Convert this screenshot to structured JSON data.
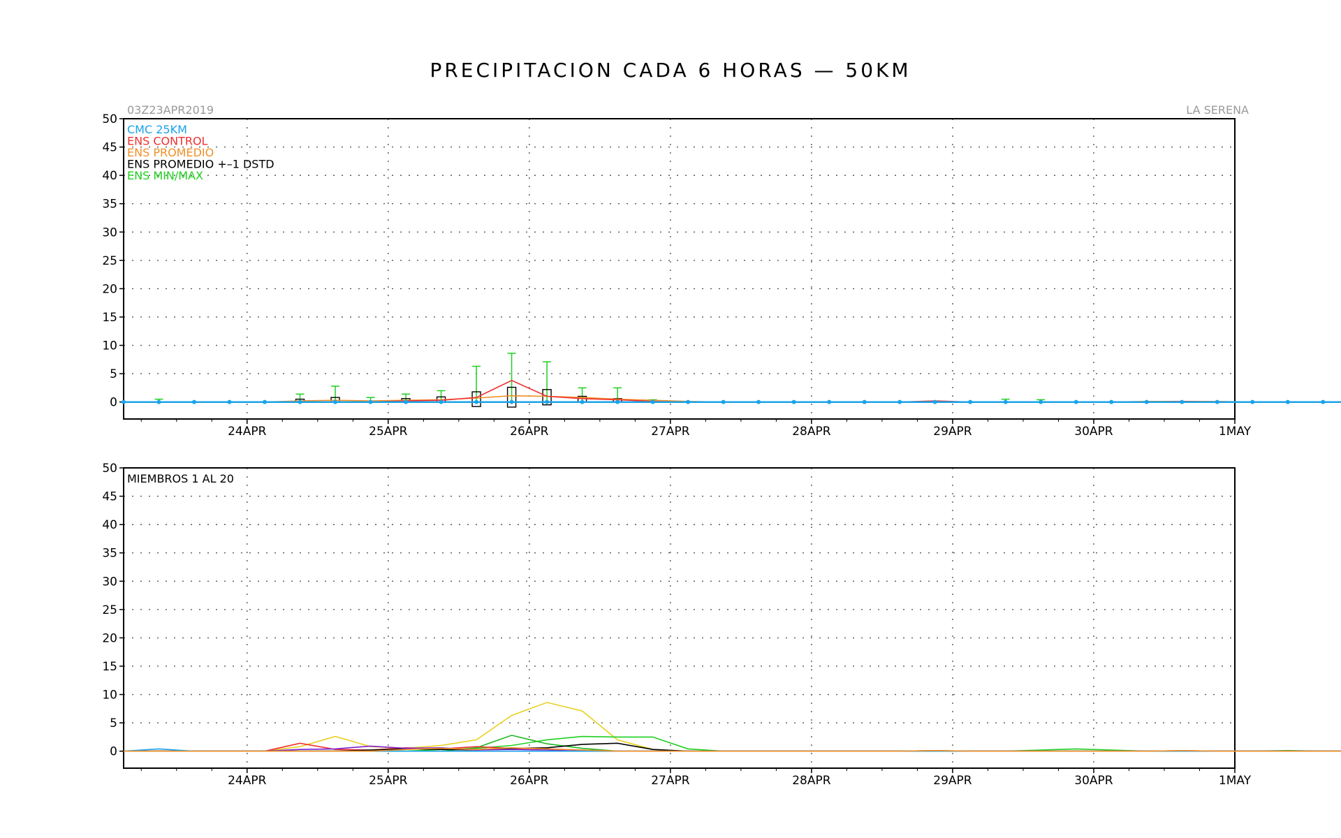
{
  "title": "PRECIPITACION CADA 6 HORAS — 50KM",
  "init_time": "03Z23APR2019",
  "location": "LA SERENA",
  "colors": {
    "cmc": "#1aa3e8",
    "control": "#f03030",
    "promedio": "#f09028",
    "dstd": "#000000",
    "minmax": "#1ed01e",
    "axis": "#000000"
  },
  "chart_data": [
    {
      "type": "line",
      "xlim": [
        "23APR 03Z",
        "1MAY 00Z"
      ],
      "ylim": [
        -3,
        50
      ],
      "yticks": [
        0,
        5,
        10,
        15,
        20,
        25,
        30,
        35,
        40,
        45,
        50
      ],
      "xtick_labels": [
        "24APR",
        "25APR",
        "26APR",
        "27APR",
        "28APR",
        "29APR",
        "30APR",
        "1MAY"
      ],
      "grid": true,
      "legend": [
        {
          "label": "CMC 25KM",
          "color_key": "cmc"
        },
        {
          "label": "ENS CONTROL",
          "color_key": "control"
        },
        {
          "label": "ENS PROMEDIO",
          "color_key": "promedio"
        },
        {
          "label": "ENS PROMEDIO +–1 DSTD",
          "color_key": "dstd"
        },
        {
          "label": "ENS MIN/MAX",
          "color_key": "minmax"
        }
      ],
      "legend_position": "top-left",
      "x_start_hour": 3,
      "step_hours": 6,
      "cmc": [
        0,
        0,
        0,
        0,
        0,
        0,
        0,
        0,
        0,
        0,
        0,
        0,
        0,
        0,
        0,
        0,
        0,
        0,
        0,
        0,
        0,
        0,
        0,
        0,
        0,
        0,
        0,
        0,
        0,
        0,
        0,
        0,
        0,
        0,
        0,
        0,
        0,
        0,
        0,
        0,
        0,
        0,
        0,
        0,
        0,
        0,
        0,
        0,
        0,
        0,
        0,
        0,
        0,
        0,
        0,
        0,
        0,
        0,
        0,
        0,
        0,
        0,
        0,
        0
      ],
      "control": [
        0,
        0,
        0,
        0,
        0,
        0,
        0,
        0,
        0.2,
        0.3,
        0.8,
        3.8,
        1.0,
        0.6,
        0.4,
        0.1,
        0,
        0,
        0,
        0,
        0,
        0,
        0,
        0.2,
        0,
        0,
        0,
        0,
        0,
        0,
        0.1,
        0,
        0,
        0,
        0,
        0,
        0,
        0,
        0,
        0,
        0,
        0,
        0,
        0,
        0,
        0,
        0,
        0,
        0,
        0,
        0,
        0,
        0,
        0,
        0,
        0,
        0,
        0,
        0,
        0,
        0,
        0,
        0,
        0
      ],
      "promedio": [
        0,
        0,
        0,
        0,
        0,
        0.2,
        0.3,
        0.2,
        0.3,
        0.4,
        0.7,
        1.1,
        1.0,
        0.8,
        0.5,
        0.3,
        0.1,
        0,
        0,
        0,
        0,
        0,
        0,
        0.1,
        0,
        0,
        0,
        0,
        0,
        0.1,
        0.1,
        0.1,
        0,
        0,
        0,
        0,
        0,
        0,
        0,
        0,
        0,
        0,
        0,
        0,
        0,
        0,
        0,
        0,
        0,
        0,
        0,
        0,
        0,
        0,
        0,
        0,
        0,
        0,
        0,
        0,
        0,
        0,
        0,
        0
      ],
      "box_indices": [
        5,
        6,
        8,
        9,
        10,
        11,
        12,
        13,
        14
      ],
      "box_low": [
        0,
        0,
        0,
        0,
        -0.8,
        -0.9,
        -0.5,
        0,
        0
      ],
      "box_high": [
        0.5,
        0.8,
        0.6,
        0.9,
        1.8,
        2.6,
        2.2,
        1.0,
        0.6
      ],
      "max": [
        0,
        0.5,
        0,
        0,
        0,
        1.4,
        2.8,
        0.8,
        1.4,
        2.0,
        6.3,
        8.6,
        7.1,
        2.5,
        2.5,
        0.4,
        0,
        0,
        0,
        0,
        0,
        0,
        0,
        0,
        0,
        0.5,
        0.4,
        0.2,
        0.3,
        0,
        0,
        0,
        0,
        0,
        0,
        0,
        0,
        0,
        0,
        0,
        0,
        0,
        0,
        0,
        0,
        0,
        0,
        0,
        0,
        0,
        0,
        0,
        0,
        0,
        0,
        0,
        0,
        0,
        0,
        0,
        0,
        0,
        0,
        0
      ]
    },
    {
      "type": "line",
      "xlim": [
        "23APR 03Z",
        "1MAY 00Z"
      ],
      "ylim": [
        -3,
        50
      ],
      "yticks": [
        0,
        5,
        10,
        15,
        20,
        25,
        30,
        35,
        40,
        45,
        50
      ],
      "xtick_labels": [
        "24APR",
        "25APR",
        "26APR",
        "27APR",
        "28APR",
        "29APR",
        "30APR",
        "1MAY"
      ],
      "grid": true,
      "annotation": "MIEMBROS 1 AL 20",
      "x_start_hour": 3,
      "step_hours": 6,
      "series": [
        {
          "color": "#e8d020",
          "values": [
            0,
            0,
            0,
            0,
            0,
            0.8,
            2.6,
            0.8,
            0.5,
            1.0,
            2.0,
            6.3,
            8.6,
            7.1,
            2.0,
            0.3,
            0,
            0,
            0,
            0,
            0,
            0,
            0,
            0,
            0,
            0,
            0,
            0,
            0,
            0,
            0,
            0,
            0,
            0,
            0,
            0,
            0,
            0,
            0,
            0,
            0,
            0,
            0,
            0,
            0,
            0,
            0,
            0,
            0,
            0,
            0,
            0,
            0,
            0,
            0,
            0,
            0,
            0,
            0,
            0,
            0,
            0,
            0,
            0
          ]
        },
        {
          "color": "#1ed01e",
          "values": [
            0,
            0,
            0,
            0,
            0,
            0,
            0,
            0,
            0,
            0.3,
            0.5,
            1.0,
            2.0,
            2.6,
            2.5,
            2.5,
            0.4,
            0,
            0,
            0,
            0,
            0,
            0,
            0.1,
            0,
            0,
            0.2,
            0.4,
            0.2,
            0,
            0,
            0,
            0,
            0.1,
            0,
            0,
            0,
            0,
            0,
            0,
            0,
            0,
            0,
            0,
            0,
            0,
            0,
            0,
            0,
            0,
            0,
            0,
            0,
            0,
            0,
            0,
            0,
            0,
            0,
            0,
            0,
            0,
            0,
            0
          ]
        },
        {
          "color": "#20b820",
          "values": [
            0,
            0,
            0,
            0,
            0,
            0,
            0,
            0,
            0,
            0,
            0.6,
            2.8,
            1.3,
            0.5,
            0,
            0,
            0,
            0,
            0,
            0,
            0,
            0,
            0,
            0,
            0,
            0,
            0,
            0,
            0,
            0,
            0,
            0,
            0,
            0,
            0,
            0,
            0,
            0,
            0,
            0,
            0,
            0,
            0,
            0,
            0,
            0,
            0,
            0,
            0,
            0,
            0,
            0,
            0,
            0,
            0,
            0,
            0,
            0,
            0,
            0,
            0,
            0,
            0,
            0
          ]
        },
        {
          "color": "#f03030",
          "values": [
            0,
            0,
            0,
            0,
            0,
            1.4,
            0.3,
            0.2,
            0.6,
            0.4,
            0.8,
            0.5,
            0.4,
            0.2,
            0,
            0,
            0,
            0,
            0,
            0,
            0,
            0,
            0,
            0.1,
            0,
            0,
            0,
            0,
            0,
            0,
            0.1,
            0,
            0,
            0,
            0,
            0,
            0,
            0,
            0,
            0,
            0,
            0,
            0,
            0,
            0,
            0,
            0,
            0,
            0,
            0,
            0,
            0,
            0,
            0,
            0,
            0,
            0,
            0,
            0,
            0,
            0,
            0,
            0,
            0
          ]
        },
        {
          "color": "#000000",
          "values": [
            0,
            0,
            0,
            0,
            0,
            0,
            0,
            0.2,
            0.4,
            0.3,
            0.2,
            0.5,
            0.6,
            1.2,
            1.4,
            0.3,
            0,
            0,
            0,
            0,
            0,
            0,
            0,
            0,
            0,
            0,
            0,
            0,
            0,
            0,
            0,
            0,
            0,
            0,
            0,
            0,
            0,
            0,
            0,
            0,
            0,
            0,
            0,
            0,
            0,
            0.2,
            0,
            0,
            0,
            0,
            0.1,
            0.2,
            0,
            0,
            0,
            0,
            0,
            0,
            0.1,
            0.1,
            0,
            0,
            0,
            0
          ]
        },
        {
          "color": "#8020d0",
          "values": [
            0,
            0,
            0,
            0,
            0,
            0.3,
            0.4,
            0.9,
            0.5,
            0.6,
            0.2,
            0.3,
            0.2,
            0,
            0,
            0,
            0,
            0,
            0,
            0,
            0,
            0,
            0,
            0,
            0,
            0,
            0,
            0,
            0,
            0,
            0,
            0,
            0,
            0,
            0,
            0,
            0,
            0,
            0,
            0,
            0,
            0,
            0,
            0,
            0,
            0,
            0,
            0,
            0,
            0,
            0,
            0,
            0,
            0,
            0,
            0,
            0,
            0,
            0,
            0,
            0,
            0,
            0.1,
            0
          ]
        },
        {
          "color": "#1aa3e8",
          "values": [
            0,
            0.4,
            0,
            0,
            0,
            0,
            0,
            0,
            0,
            0,
            0,
            0,
            0,
            0,
            0,
            0,
            0,
            0,
            0,
            0,
            0,
            0,
            0,
            0,
            0,
            0,
            0,
            0,
            0,
            0,
            0,
            0,
            0,
            0,
            0,
            0,
            0,
            0,
            0,
            0,
            0,
            0,
            0,
            0,
            0,
            0,
            0,
            0,
            0,
            0,
            0,
            0,
            0,
            0,
            0,
            0,
            0,
            0,
            0,
            0,
            0,
            0,
            0,
            0
          ]
        },
        {
          "color": "#f09028",
          "values": [
            0,
            0,
            0,
            0,
            0,
            0,
            0,
            0,
            0.3,
            0.5,
            0.3,
            0.6,
            0.4,
            0.2,
            0,
            0,
            0,
            0,
            0,
            0,
            0,
            0,
            0,
            0.1,
            0,
            0,
            0,
            0,
            0,
            0,
            0.1,
            0,
            0,
            0,
            0,
            0,
            0,
            0,
            0,
            0,
            0,
            0,
            0,
            0,
            0,
            0,
            0,
            0,
            0,
            0,
            0,
            0,
            0,
            0,
            0,
            0,
            0,
            0,
            0,
            0,
            0,
            0,
            0,
            0
          ]
        }
      ]
    }
  ]
}
